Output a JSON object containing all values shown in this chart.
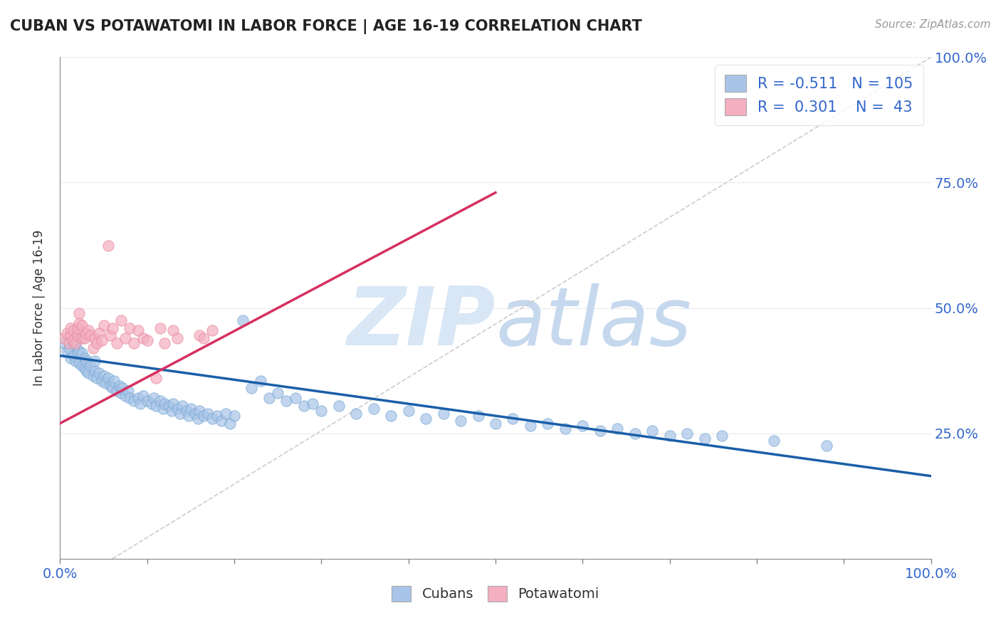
{
  "title": "CUBAN VS POTAWATOMI IN LABOR FORCE | AGE 16-19 CORRELATION CHART",
  "source_text": "Source: ZipAtlas.com",
  "ylabel": "In Labor Force | Age 16-19",
  "xlim": [
    0.0,
    1.0
  ],
  "ylim": [
    0.0,
    1.0
  ],
  "blue_color": "#a8c4e8",
  "blue_edge_color": "#7aaad4",
  "pink_color": "#f4afc0",
  "pink_edge_color": "#e88aa0",
  "blue_line_color": "#1a5fa8",
  "pink_line_color": "#d63060",
  "ref_line_color": "#cccccc",
  "watermark_color": "#d8e6f5",
  "watermark_color2": "#c5d8ee",
  "legend_R_blue": "-0.511",
  "legend_N_blue": "105",
  "legend_R_pink": "0.301",
  "legend_N_pink": "43",
  "legend_label_blue": "Cubans",
  "legend_label_pink": "Potawatomi",
  "blue_line_x0": 0.0,
  "blue_line_x1": 1.0,
  "blue_line_y0": 0.405,
  "blue_line_y1": 0.165,
  "pink_line_x0": 0.0,
  "pink_line_x1": 0.5,
  "pink_line_y0": 0.27,
  "pink_line_y1": 0.73,
  "ref_line_x0": 0.06,
  "ref_line_x1": 1.0,
  "ref_line_y0": 0.0,
  "ref_line_y1": 1.0,
  "blue_scatter_x": [
    0.005,
    0.008,
    0.01,
    0.012,
    0.015,
    0.015,
    0.018,
    0.018,
    0.02,
    0.02,
    0.022,
    0.022,
    0.025,
    0.025,
    0.028,
    0.028,
    0.03,
    0.03,
    0.032,
    0.035,
    0.038,
    0.04,
    0.04,
    0.042,
    0.045,
    0.048,
    0.05,
    0.052,
    0.055,
    0.058,
    0.06,
    0.062,
    0.065,
    0.068,
    0.07,
    0.072,
    0.075,
    0.078,
    0.08,
    0.085,
    0.09,
    0.092,
    0.095,
    0.1,
    0.105,
    0.108,
    0.11,
    0.115,
    0.118,
    0.12,
    0.125,
    0.128,
    0.13,
    0.135,
    0.138,
    0.14,
    0.145,
    0.148,
    0.15,
    0.155,
    0.158,
    0.16,
    0.165,
    0.17,
    0.175,
    0.18,
    0.185,
    0.19,
    0.195,
    0.2,
    0.21,
    0.22,
    0.23,
    0.24,
    0.25,
    0.26,
    0.27,
    0.28,
    0.29,
    0.3,
    0.32,
    0.34,
    0.36,
    0.38,
    0.4,
    0.42,
    0.44,
    0.46,
    0.48,
    0.5,
    0.52,
    0.54,
    0.56,
    0.58,
    0.6,
    0.62,
    0.64,
    0.66,
    0.68,
    0.7,
    0.72,
    0.74,
    0.76,
    0.82,
    0.88
  ],
  "blue_scatter_y": [
    0.43,
    0.415,
    0.42,
    0.4,
    0.405,
    0.43,
    0.395,
    0.425,
    0.41,
    0.44,
    0.39,
    0.415,
    0.385,
    0.41,
    0.38,
    0.4,
    0.375,
    0.395,
    0.37,
    0.385,
    0.365,
    0.375,
    0.395,
    0.36,
    0.37,
    0.355,
    0.365,
    0.35,
    0.36,
    0.345,
    0.34,
    0.355,
    0.335,
    0.345,
    0.33,
    0.34,
    0.325,
    0.335,
    0.32,
    0.315,
    0.32,
    0.31,
    0.325,
    0.315,
    0.31,
    0.32,
    0.305,
    0.315,
    0.3,
    0.31,
    0.305,
    0.295,
    0.31,
    0.3,
    0.29,
    0.305,
    0.295,
    0.285,
    0.3,
    0.29,
    0.28,
    0.295,
    0.285,
    0.29,
    0.28,
    0.285,
    0.275,
    0.29,
    0.27,
    0.285,
    0.475,
    0.34,
    0.355,
    0.32,
    0.33,
    0.315,
    0.32,
    0.305,
    0.31,
    0.295,
    0.305,
    0.29,
    0.3,
    0.285,
    0.295,
    0.28,
    0.29,
    0.275,
    0.285,
    0.27,
    0.28,
    0.265,
    0.27,
    0.26,
    0.265,
    0.255,
    0.26,
    0.25,
    0.255,
    0.245,
    0.25,
    0.24,
    0.245,
    0.235,
    0.225
  ],
  "pink_scatter_x": [
    0.005,
    0.008,
    0.01,
    0.012,
    0.012,
    0.015,
    0.015,
    0.018,
    0.02,
    0.02,
    0.022,
    0.022,
    0.025,
    0.025,
    0.028,
    0.03,
    0.032,
    0.035,
    0.038,
    0.04,
    0.042,
    0.045,
    0.048,
    0.05,
    0.055,
    0.058,
    0.06,
    0.065,
    0.07,
    0.075,
    0.08,
    0.085,
    0.09,
    0.095,
    0.1,
    0.11,
    0.115,
    0.12,
    0.13,
    0.135,
    0.16,
    0.165,
    0.175
  ],
  "pink_scatter_y": [
    0.44,
    0.45,
    0.43,
    0.445,
    0.46,
    0.435,
    0.455,
    0.43,
    0.445,
    0.46,
    0.47,
    0.49,
    0.44,
    0.465,
    0.44,
    0.45,
    0.455,
    0.445,
    0.42,
    0.44,
    0.43,
    0.45,
    0.435,
    0.465,
    0.625,
    0.445,
    0.46,
    0.43,
    0.475,
    0.44,
    0.46,
    0.43,
    0.455,
    0.44,
    0.435,
    0.36,
    0.46,
    0.43,
    0.455,
    0.44,
    0.445,
    0.44,
    0.455
  ]
}
